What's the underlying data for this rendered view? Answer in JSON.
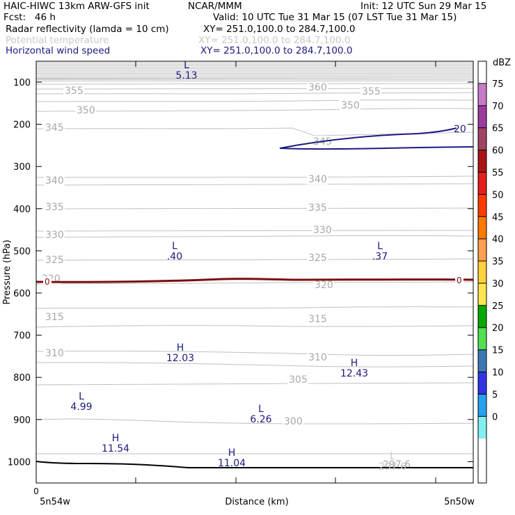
{
  "header": {
    "model": "HAIC-HIWC 13km ARW-GFS init",
    "org": "NCAR/MMM",
    "init": "Init: 12 UTC Sun 29 Mar 15",
    "fcst": "Fcst:   46 h",
    "valid": "Valid: 10 UTC Tue 31 Mar 15 (07 LST Tue 31 Mar 15)",
    "fields": [
      {
        "name": "Radar reflectivity (lamda = 10 cm)",
        "xy": "XY= 251.0,100.0 to 284.7,100.0",
        "color": "#000000"
      },
      {
        "name": "Potential temperature",
        "xy": "XY= 251.0,100.0 to 284.7,100.0",
        "color": "#c8c8c8"
      },
      {
        "name": "Horizontal wind speed",
        "xy": "XY= 251.0,100.0 to 284.7,100.0",
        "color": "#1a1a80"
      }
    ]
  },
  "chart_data": {
    "type": "contour-cross-section",
    "xlabel": "Distance (km)",
    "ylabel": "Pressure (hPa)",
    "x_tick_labels": [
      "0"
    ],
    "x_endpoints": [
      "5n54w",
      "5n50w"
    ],
    "y_ticks": [
      100,
      200,
      300,
      400,
      500,
      600,
      700,
      800,
      900,
      1000
    ],
    "ylim": [
      1050,
      50
    ],
    "theta_contours": [
      {
        "label": "360",
        "p": 113
      },
      {
        "label": "355",
        "p": 128
      },
      {
        "label": "350",
        "p": 160
      },
      {
        "label": "345",
        "p": 215
      },
      {
        "label": "340",
        "p": 335
      },
      {
        "label": "335",
        "p": 408
      },
      {
        "label": "330",
        "p": 472
      },
      {
        "label": "325",
        "p": 519
      },
      {
        "label": "320",
        "p": 583
      },
      {
        "label": "315",
        "p": 668
      },
      {
        "label": "310",
        "p": 752
      },
      {
        "label": "305",
        "p": 815
      },
      {
        "label": "300",
        "p": 905
      },
      {
        "label": "297.6",
        "p": 1012
      }
    ],
    "theta_labels": [
      "360",
      "355",
      "355",
      "350",
      "350",
      "345",
      "345",
      "340",
      "340",
      "335",
      "335",
      "330",
      "330",
      "325",
      "325",
      "320",
      "320",
      "315",
      "315",
      "310",
      "310",
      "305",
      "300",
      "297.6"
    ],
    "extrema": [
      {
        "kind": "L",
        "value": "5.13",
        "color": "#1a1a80"
      },
      {
        "kind": "L",
        "value": ".40",
        "color": "#1a1a80"
      },
      {
        "kind": "L",
        "value": ".37",
        "color": "#1a1a80"
      },
      {
        "kind": "H",
        "value": "12.03",
        "color": "#1a1a80"
      },
      {
        "kind": "H",
        "value": "12.43",
        "color": "#1a1a80"
      },
      {
        "kind": "L",
        "value": "4.99",
        "color": "#1a1a80"
      },
      {
        "kind": "L",
        "value": "6.26",
        "color": "#1a1a80"
      },
      {
        "kind": "H",
        "value": "11.54",
        "color": "#1a1a80"
      },
      {
        "kind": "H",
        "value": "11.04",
        "color": "#1a1a80"
      },
      {
        "kind": "L",
        "value": "297.6",
        "color": "#c8c8c8"
      }
    ],
    "wind_contour_label": "20",
    "zero_dbz_label": "0",
    "colorbar": {
      "unit": "dBZ",
      "levels": [
        "75",
        "70",
        "65",
        "60",
        "55",
        "50",
        "45",
        "40",
        "35",
        "30",
        "25",
        "20",
        "15",
        "10",
        "5",
        "0"
      ],
      "colors": [
        "#ffffff",
        "#c87ac8",
        "#9c3c9c",
        "#a04464",
        "#aa1414",
        "#e61e1e",
        "#ff3c00",
        "#ff7800",
        "#ffa050",
        "#ffd23c",
        "#ffe650",
        "#00aa00",
        "#50e050",
        "#3c78b4",
        "#3232e6",
        "#28a0f0",
        "#82f0f0",
        "#ffffff",
        "#ffffff"
      ]
    }
  }
}
